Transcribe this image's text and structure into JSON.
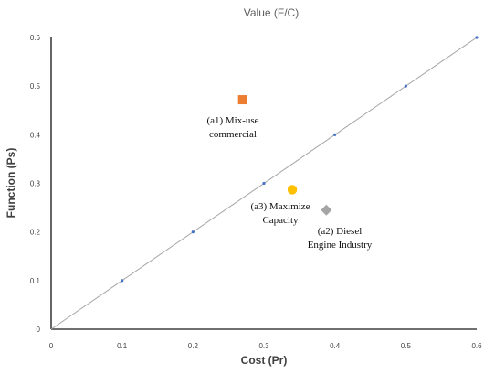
{
  "chart_data": {
    "type": "scatter",
    "title": "Value (F/C)",
    "xlabel": "Cost (Pr)",
    "ylabel": "Function (Ps)",
    "xlim": [
      0,
      0.6
    ],
    "ylim": [
      0,
      0.6
    ],
    "x_ticks": [
      "0",
      "0.1",
      "0.2",
      "0.3",
      "0.4",
      "0.5",
      "0.6"
    ],
    "y_ticks": [
      "0",
      "0.1",
      "0.2",
      "0.3",
      "0.4",
      "0.5",
      "0.6"
    ],
    "grid": false,
    "reference_line": {
      "points": [
        {
          "x": 0.1,
          "y": 0.1
        },
        {
          "x": 0.2,
          "y": 0.2
        },
        {
          "x": 0.3,
          "y": 0.3
        },
        {
          "x": 0.4,
          "y": 0.4
        },
        {
          "x": 0.5,
          "y": 0.5
        },
        {
          "x": 0.6,
          "y": 0.6
        }
      ],
      "color": "#a6a6a6",
      "marker_color": "#4472c4"
    },
    "points": [
      {
        "id": "a1",
        "x": 0.27,
        "y": 0.472,
        "marker": "square",
        "color": "#ed7d31",
        "label_lines": [
          "(a1) Mix-use",
          "commercial"
        ]
      },
      {
        "id": "a2",
        "x": 0.388,
        "y": 0.245,
        "marker": "diamond",
        "color": "#a5a5a5",
        "label_lines": [
          "(a2) Diesel",
          "Engine Industry"
        ]
      },
      {
        "id": "a3",
        "x": 0.34,
        "y": 0.287,
        "marker": "circle",
        "color": "#ffc000",
        "label_lines": [
          "(a3) Maximize",
          "Capacity"
        ]
      }
    ]
  }
}
